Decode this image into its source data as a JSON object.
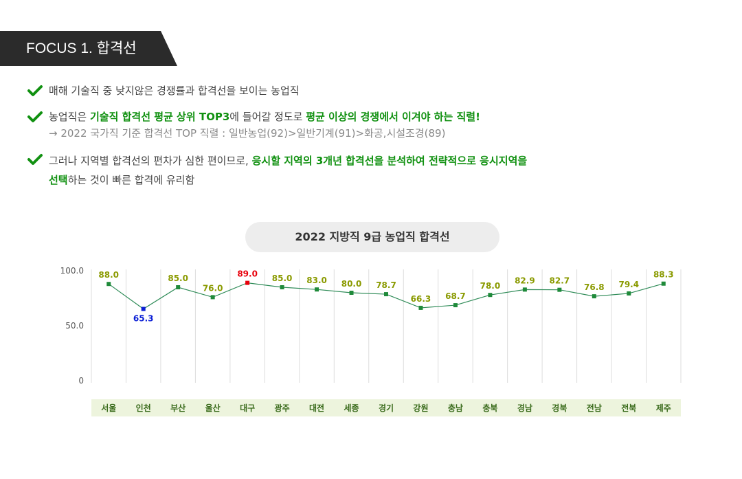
{
  "focus_tab": {
    "label": "FOCUS 1. 합격선"
  },
  "bullets": [
    {
      "icon": "check-icon",
      "lines": [
        {
          "text": "매해 기술직 중 낮지않은 경쟁률과 합격선을 보이는 농업직"
        }
      ]
    },
    {
      "icon": "check-icon",
      "lines": [
        {
          "parts": [
            "농업직은 ",
            "기술직 합격선 평균 상위 TOP3",
            "에 들어갈 정도로 ",
            "평균 이상의 경쟁에서 이겨야 하는 직렬!"
          ]
        },
        {
          "sub": "→ 2022 국가직 기준 합격선 TOP 직렬 : 일반농업(92)>일반기계(91)>화공,시설조경(89)"
        }
      ]
    },
    {
      "icon": "check-icon",
      "lines": [
        {
          "parts": [
            "그러나 지역별 합격선의 편차가 심한 편이므로, ",
            "응시할 지역의 3개년 합격선을 분석하여 전략적으로 응시지역을"
          ]
        },
        {
          "parts": [
            "선택",
            "하는 것이 빠른 합격에 유리함"
          ]
        }
      ]
    }
  ],
  "colors": {
    "highlight": "#119111",
    "line": "#2e8b57",
    "marker_default": "#1f8a3a",
    "marker_max": "#e8000b",
    "marker_min": "#0b1fd6",
    "label_default": "#8a9a00",
    "label_max": "#e8000b",
    "label_min": "#0b1fd6",
    "xlabel_bg": "#edf4dd",
    "xlabel_text": "#3a6b1c"
  },
  "chart_data": {
    "type": "line",
    "title": "2022 지방직 9급 농업직 합격선",
    "categories": [
      "서울",
      "인천",
      "부산",
      "울산",
      "대구",
      "광주",
      "대전",
      "세종",
      "경기",
      "강원",
      "충남",
      "충북",
      "경남",
      "경북",
      "전남",
      "전북",
      "제주"
    ],
    "series": [
      {
        "values": [
          88.0,
          65.3,
          85.0,
          76.0,
          89.0,
          85.0,
          83.0,
          80.0,
          78.7,
          66.3,
          68.7,
          78.0,
          82.9,
          82.7,
          76.8,
          79.4,
          88.3
        ]
      }
    ],
    "value_labels": [
      "88.0",
      "65.3",
      "85.0",
      "76.0",
      "89.0",
      "85.0",
      "83.0",
      "80.0",
      "78.7",
      "66.3",
      "68.7",
      "78.0",
      "82.9",
      "82.7",
      "76.8",
      "79.4",
      "88.3"
    ],
    "max_index": 4,
    "min_index": 1,
    "y_ticks": [
      "100.0",
      "50.0",
      "0"
    ],
    "y_tick_values": [
      100,
      50,
      0
    ],
    "ylim": [
      0,
      100
    ],
    "grid": "vertical"
  }
}
